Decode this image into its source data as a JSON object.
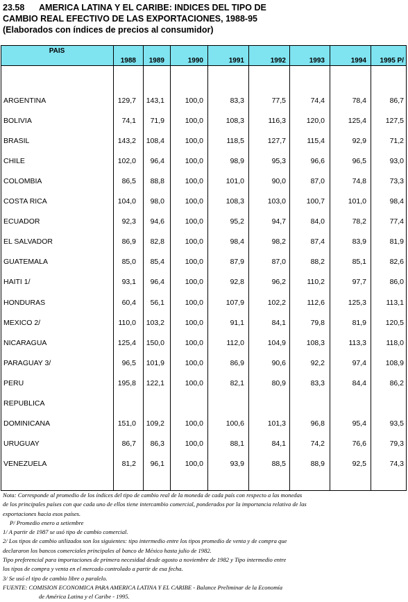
{
  "title": {
    "number": "23.58",
    "line1": "AMERICA LATINA Y EL CARIBE: INDICES DEL TIPO DE",
    "line2": "CAMBIO REAL EFECTIVO DE LAS EXPORTACIONES, 1988-95",
    "line3": "(Elaborados con índices de precios al consumidor)"
  },
  "table": {
    "header_country": "PAIS",
    "years": [
      "1988",
      "1989",
      "1990",
      "1991",
      "1992",
      "1993",
      "1994",
      "1995 P/"
    ],
    "rows": [
      {
        "name": "ARGENTINA",
        "values": [
          "129,7",
          "143,1",
          "100,0",
          "83,3",
          "77,5",
          "74,4",
          "78,4",
          "86,7"
        ]
      },
      {
        "name": "BOLIVIA",
        "values": [
          "74,1",
          "71,9",
          "100,0",
          "108,3",
          "116,3",
          "120,0",
          "125,4",
          "127,5"
        ]
      },
      {
        "name": "BRASIL",
        "values": [
          "143,2",
          "108,4",
          "100,0",
          "118,5",
          "127,7",
          "115,4",
          "92,9",
          "71,2"
        ]
      },
      {
        "name": "CHILE",
        "values": [
          "102,0",
          "96,4",
          "100,0",
          "98,9",
          "95,3",
          "96,6",
          "96,5",
          "93,0"
        ]
      },
      {
        "name": "COLOMBIA",
        "values": [
          "86,5",
          "88,8",
          "100,0",
          "101,0",
          "90,0",
          "87,0",
          "74,8",
          "73,3"
        ]
      },
      {
        "name": "COSTA RICA",
        "values": [
          "104,0",
          "98,0",
          "100,0",
          "108,3",
          "103,0",
          "100,7",
          "101,0",
          "98,4"
        ]
      },
      {
        "name": "ECUADOR",
        "values": [
          "92,3",
          "94,6",
          "100,0",
          "95,2",
          "94,7",
          "84,0",
          "78,2",
          "77,4"
        ]
      },
      {
        "name": "EL SALVADOR",
        "values": [
          "86,9",
          "82,8",
          "100,0",
          "98,4",
          "98,2",
          "87,4",
          "83,9",
          "81,9"
        ]
      },
      {
        "name": "GUATEMALA",
        "values": [
          "85,0",
          "85,4",
          "100,0",
          "87,9",
          "87,0",
          "88,2",
          "85,1",
          "82,6"
        ]
      },
      {
        "name": "HAITI  1/",
        "values": [
          "93,1",
          "96,4",
          "100,0",
          "92,8",
          "96,2",
          "110,2",
          "97,7",
          "86,0"
        ]
      },
      {
        "name": "HONDURAS",
        "values": [
          "60,4",
          "56,1",
          "100,0",
          "107,9",
          "102,2",
          "112,6",
          "125,3",
          "113,1"
        ]
      },
      {
        "name": "MEXICO  2/",
        "values": [
          "110,0",
          "103,2",
          "100,0",
          "91,1",
          "84,1",
          "79,8",
          "81,9",
          "120,5"
        ]
      },
      {
        "name": "NICARAGUA",
        "values": [
          "125,4",
          "150,0",
          "100,0",
          "112,0",
          "104,9",
          "108,3",
          "113,3",
          "118,0"
        ]
      },
      {
        "name": "PARAGUAY  3/",
        "values": [
          "96,5",
          "101,9",
          "100,0",
          "86,9",
          "90,6",
          "92,2",
          "97,4",
          "108,9"
        ]
      },
      {
        "name": "PERU",
        "values": [
          "195,8",
          "122,1",
          "100,0",
          "82,1",
          "80,9",
          "83,3",
          "84,4",
          "86,2"
        ]
      },
      {
        "name": "REPUBLICA",
        "values": [
          "",
          "",
          "",
          "",
          "",
          "",
          "",
          ""
        ]
      },
      {
        "name": "DOMINICANA",
        "values": [
          "151,0",
          "109,2",
          "100,0",
          "100,6",
          "101,3",
          "96,8",
          "95,4",
          "93,5"
        ]
      },
      {
        "name": "URUGUAY",
        "values": [
          "86,7",
          "86,3",
          "100,0",
          "88,1",
          "84,1",
          "74,2",
          "76,6",
          "79,3"
        ]
      },
      {
        "name": "VENEZUELA",
        "values": [
          "81,2",
          "96,1",
          "100,0",
          "93,9",
          "88,5",
          "88,9",
          "92,5",
          "74,3"
        ]
      }
    ]
  },
  "notes": {
    "nota_1": "Nota: Corresponde al promedio de los índices del tipo de cambio real de la moneda de cada país con respecto a las monedas",
    "nota_2": "de los principales países con que cada uno de ellos tiene intercambio comercial, ponderados por la importancia relativa de las",
    "nota_3": "exportaciones hacia esos países.",
    "p": "P/ Promedio enero a setiembre",
    "n1": "1/ A partir de 1987 se usó tipo de cambio comercial.",
    "n2a": "2/ Los tipos de cambio utilizados son los siguientes: tipo intermedio entre los tipos promedio de venta y de compra que",
    "n2b": "declararon los bancos comerciales principales al banco de México hasta julio de 1982.",
    "n2c": "Tipo preferencial para importaciones de primera necesidad desde agosto a noviembre de 1982 y Tipo intermedio entre",
    "n2d": "los tipos de compra y venta en el mercado controlado a partir de esa fecha.",
    "n3": "3/ Se usó el tipo de cambio libre o paralelo.",
    "fuente_1": "FUENTE: COMISION ECONOMICA PARA AMERICA LATINA Y EL CARIBE - Balance Preliminar de la Economía",
    "fuente_2": "de América Latina y el Caribe - 1995."
  }
}
